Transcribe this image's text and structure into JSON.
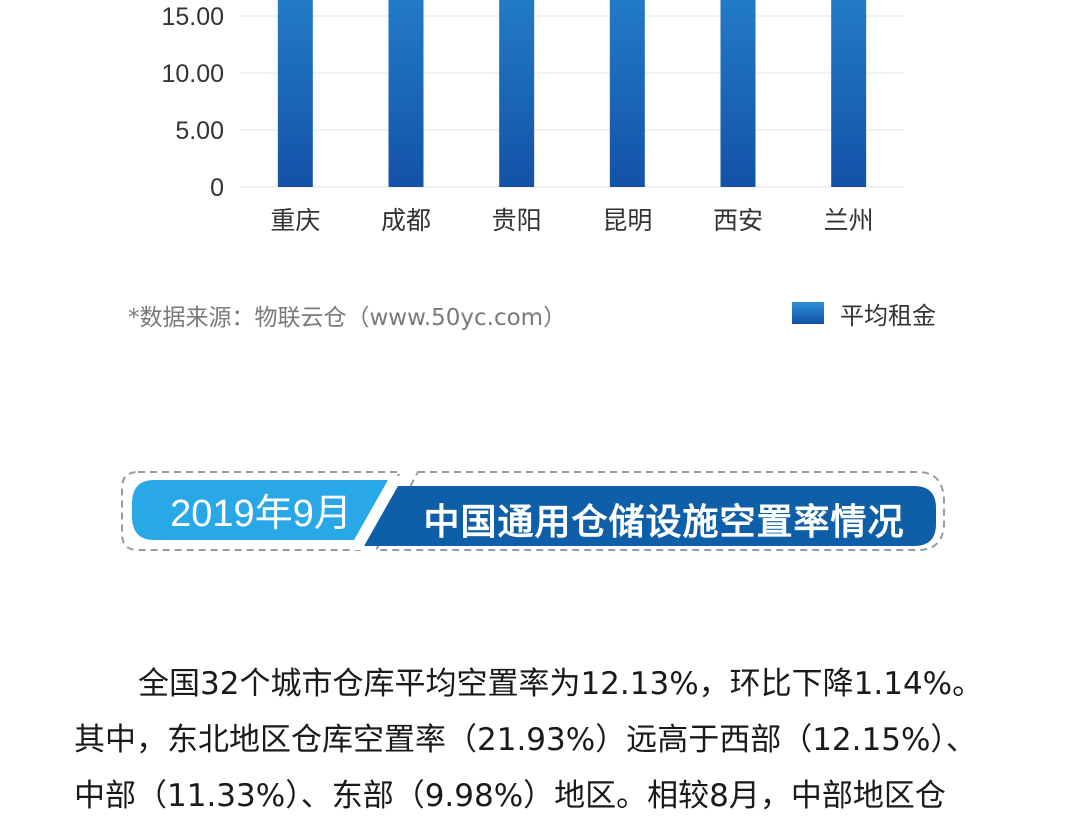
{
  "chart_data": {
    "type": "bar",
    "categories": [
      "重庆",
      "成都",
      "贵阳",
      "昆明",
      "西安",
      "兰州"
    ],
    "series": [
      {
        "name": "平均租金",
        "values": [
          25,
          25,
          25,
          25,
          25,
          25
        ]
      }
    ],
    "y_ticks": [
      "0",
      "5.00",
      "10.00",
      "15.00"
    ],
    "ylim": [
      0,
      18
    ],
    "legend": "bottom-right",
    "grid": true,
    "colors": {
      "bar_top": "#2b8fd8",
      "bar_bottom": "#1352a8",
      "grid": "#e6e6e6"
    }
  },
  "source_note": "*数据来源：物联云仓（www.50yc.com）",
  "legend_label": "平均租金",
  "section_banner": {
    "date": "2019年9月",
    "title": "中国通用仓储设施空置率情况",
    "colors": {
      "date_bg": "#29a8e8",
      "title_bg": "#0f5fa8",
      "dash": "#9a9a9a"
    }
  },
  "body_text": [
    "全国32个城市仓库平均空置率为12.13%，环比下降1.14%。",
    "其中，东北地区仓库空置率（21.93%）远高于西部（12.15%）、",
    "中部（11.33%）、东部（9.98%）地区。相较8月，中部地区仓"
  ]
}
